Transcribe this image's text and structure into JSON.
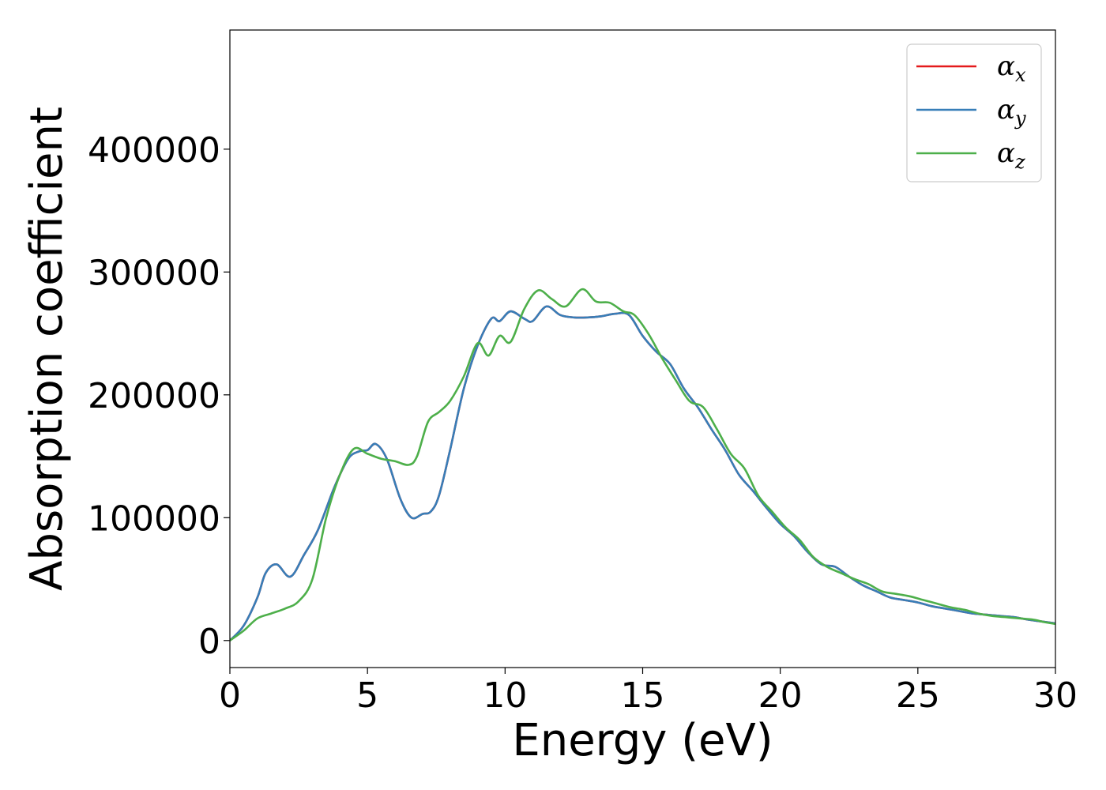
{
  "chart_data": {
    "type": "line",
    "title": "",
    "xlabel": "Energy (eV)",
    "ylabel": "Absorption coefficient",
    "xlim": [
      0,
      30
    ],
    "ylim": [
      -22000,
      497000
    ],
    "xticks": [
      0,
      5,
      10,
      15,
      20,
      25,
      30
    ],
    "yticks": [
      0,
      100000,
      200000,
      300000,
      400000
    ],
    "grid": false,
    "legend_position": "top-right",
    "series": [
      {
        "name": "α",
        "subscript": "x",
        "color": "#e41a1c",
        "x": [
          0,
          0.5,
          1,
          1.3,
          1.7,
          2.2,
          2.7,
          3.2,
          3.8,
          4.3,
          4.7,
          5.0,
          5.3,
          5.7,
          6.2,
          6.6,
          7.0,
          7.3,
          7.6,
          8.0,
          8.5,
          9.0,
          9.5,
          9.8,
          10.2,
          10.7,
          11.0,
          11.5,
          12.0,
          12.5,
          13.0,
          13.5,
          14.0,
          14.5,
          15.0,
          15.5,
          16.0,
          16.5,
          17.0,
          17.5,
          18.0,
          18.5,
          19.0,
          19.5,
          20.0,
          20.5,
          21.0,
          21.5,
          22.0,
          22.5,
          23.0,
          23.5,
          24.0,
          24.5,
          25.0,
          25.5,
          26.0,
          26.5,
          27.0,
          27.5,
          28.0,
          28.5,
          29.0,
          29.5,
          30.0
        ],
        "values": [
          0,
          12000,
          35000,
          55000,
          62000,
          52000,
          70000,
          90000,
          125000,
          148000,
          154000,
          155000,
          160000,
          148000,
          115000,
          100000,
          103000,
          105000,
          118000,
          155000,
          205000,
          240000,
          262000,
          260000,
          268000,
          262000,
          260000,
          272000,
          265000,
          263000,
          263000,
          264000,
          266000,
          265000,
          248000,
          235000,
          225000,
          205000,
          190000,
          172000,
          155000,
          135000,
          122000,
          108000,
          95000,
          85000,
          72000,
          62000,
          60000,
          52000,
          45000,
          40000,
          35000,
          33000,
          31000,
          28000,
          26000,
          24000,
          22000,
          21000,
          20000,
          19000,
          17000,
          15500,
          14000
        ]
      },
      {
        "name": "α",
        "subscript": "y",
        "color": "#377eb8",
        "x": [
          0,
          0.5,
          1,
          1.3,
          1.7,
          2.2,
          2.7,
          3.2,
          3.8,
          4.3,
          4.7,
          5.0,
          5.3,
          5.7,
          6.2,
          6.6,
          7.0,
          7.3,
          7.6,
          8.0,
          8.5,
          9.0,
          9.5,
          9.8,
          10.2,
          10.7,
          11.0,
          11.5,
          12.0,
          12.5,
          13.0,
          13.5,
          14.0,
          14.5,
          15.0,
          15.5,
          16.0,
          16.5,
          17.0,
          17.5,
          18.0,
          18.5,
          19.0,
          19.5,
          20.0,
          20.5,
          21.0,
          21.5,
          22.0,
          22.5,
          23.0,
          23.5,
          24.0,
          24.5,
          25.0,
          25.5,
          26.0,
          26.5,
          27.0,
          27.5,
          28.0,
          28.5,
          29.0,
          29.5,
          30.0
        ],
        "values": [
          0,
          12000,
          35000,
          55000,
          62000,
          52000,
          70000,
          90000,
          125000,
          148000,
          154000,
          155000,
          160000,
          148000,
          115000,
          100000,
          103000,
          105000,
          118000,
          155000,
          205000,
          240000,
          262000,
          260000,
          268000,
          262000,
          260000,
          272000,
          265000,
          263000,
          263000,
          264000,
          266000,
          265000,
          248000,
          235000,
          225000,
          205000,
          190000,
          172000,
          155000,
          135000,
          122000,
          108000,
          95000,
          85000,
          72000,
          62000,
          60000,
          52000,
          45000,
          40000,
          35000,
          33000,
          31000,
          28000,
          26000,
          24000,
          22000,
          21000,
          20000,
          19000,
          17000,
          15500,
          14000
        ]
      },
      {
        "name": "α",
        "subscript": "z",
        "color": "#4daf4a",
        "x": [
          0,
          0.5,
          1,
          1.5,
          2.0,
          2.5,
          3.0,
          3.5,
          4.0,
          4.5,
          5.0,
          5.5,
          6.0,
          6.5,
          6.8,
          7.2,
          7.6,
          8.0,
          8.5,
          9.0,
          9.4,
          9.8,
          10.2,
          10.7,
          11.2,
          11.7,
          12.2,
          12.8,
          13.3,
          13.8,
          14.3,
          14.7,
          15.2,
          15.7,
          16.2,
          16.7,
          17.2,
          17.7,
          18.2,
          18.7,
          19.2,
          19.7,
          20.2,
          20.7,
          21.2,
          21.7,
          22.2,
          22.7,
          23.2,
          23.7,
          24.2,
          24.7,
          25.2,
          25.7,
          26.2,
          26.7,
          27.2,
          27.7,
          28.2,
          28.7,
          29.2,
          29.6,
          30.0
        ],
        "values": [
          0,
          8000,
          18000,
          22000,
          26000,
          32000,
          50000,
          100000,
          135000,
          156000,
          152000,
          148000,
          146000,
          143000,
          150000,
          178000,
          186000,
          195000,
          215000,
          242000,
          232000,
          248000,
          243000,
          270000,
          285000,
          278000,
          272000,
          286000,
          276000,
          275000,
          268000,
          265000,
          250000,
          230000,
          212000,
          195000,
          190000,
          172000,
          152000,
          140000,
          118000,
          105000,
          92000,
          82000,
          68000,
          60000,
          55000,
          50000,
          46000,
          40000,
          38000,
          36000,
          33000,
          30000,
          27000,
          25000,
          22000,
          20000,
          19000,
          18000,
          17000,
          15000,
          13500
        ]
      }
    ]
  }
}
